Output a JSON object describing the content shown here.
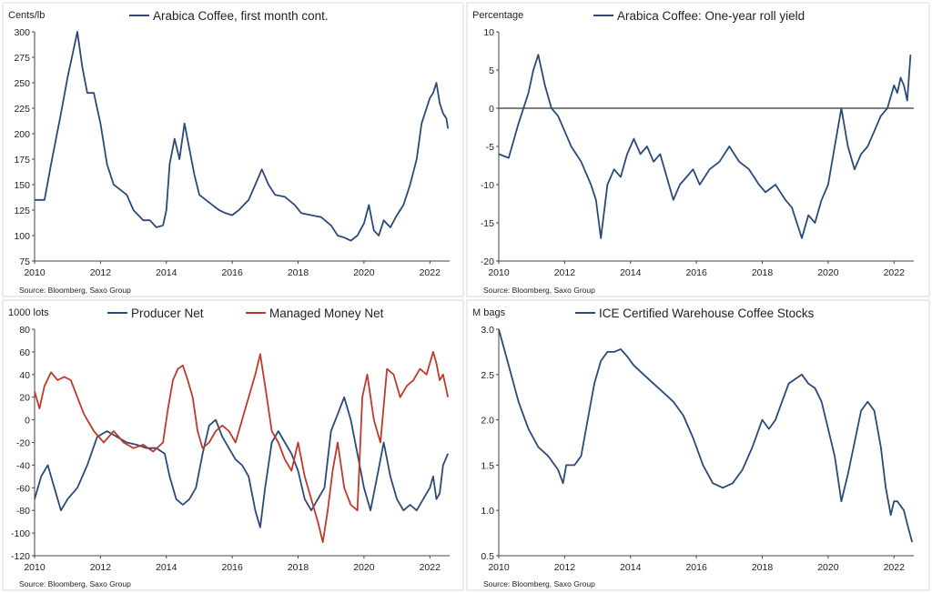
{
  "colors": {
    "navy": "#2b4a78",
    "red": "#c0392b",
    "axis": "#444444",
    "zero_line": "#555555",
    "frame": "#d9d9d9",
    "text": "#222222"
  },
  "source_note": "Source: Bloomberg, Saxo Group",
  "chart_data": [
    {
      "type": "line",
      "title": "",
      "ylabel": "Cents/lb",
      "ylim": [
        75,
        300
      ],
      "yticks": [
        "75",
        "100",
        "125",
        "150",
        "175",
        "200",
        "225",
        "250",
        "275",
        "300"
      ],
      "xlim": [
        2010,
        2022.6
      ],
      "xticks": [
        "2010",
        "2012",
        "2014",
        "2016",
        "2018",
        "2020",
        "2022"
      ],
      "grid": false,
      "legend": "top",
      "series": [
        {
          "name": "Arabica Coffee, first month cont.",
          "x": [
            2010.0,
            2010.3,
            2010.5,
            2010.8,
            2011.0,
            2011.2,
            2011.3,
            2011.45,
            2011.6,
            2011.8,
            2012.0,
            2012.2,
            2012.4,
            2012.6,
            2012.8,
            2013.0,
            2013.3,
            2013.5,
            2013.7,
            2013.9,
            2014.0,
            2014.1,
            2014.25,
            2014.4,
            2014.55,
            2014.7,
            2014.85,
            2015.0,
            2015.2,
            2015.4,
            2015.6,
            2015.8,
            2016.0,
            2016.2,
            2016.5,
            2016.7,
            2016.9,
            2017.1,
            2017.3,
            2017.6,
            2017.9,
            2018.1,
            2018.4,
            2018.7,
            2019.0,
            2019.2,
            2019.4,
            2019.6,
            2019.8,
            2020.0,
            2020.15,
            2020.3,
            2020.45,
            2020.6,
            2020.8,
            2021.0,
            2021.2,
            2021.4,
            2021.6,
            2021.75,
            2021.9,
            2022.0,
            2022.1,
            2022.2,
            2022.3,
            2022.4,
            2022.5,
            2022.55
          ],
          "values": [
            135,
            135,
            170,
            220,
            255,
            285,
            300,
            265,
            240,
            240,
            210,
            170,
            150,
            145,
            140,
            125,
            115,
            115,
            108,
            110,
            125,
            170,
            195,
            175,
            210,
            185,
            160,
            140,
            135,
            130,
            125,
            122,
            120,
            125,
            135,
            150,
            165,
            150,
            140,
            138,
            130,
            122,
            120,
            118,
            110,
            100,
            98,
            95,
            100,
            112,
            130,
            105,
            100,
            115,
            108,
            120,
            130,
            150,
            175,
            210,
            225,
            235,
            240,
            250,
            230,
            220,
            215,
            205
          ]
        }
      ]
    },
    {
      "type": "line",
      "title": "",
      "ylabel": "Percentage",
      "ylim": [
        -20,
        10
      ],
      "yticks": [
        "-20",
        "-15",
        "-10",
        "-5",
        "0",
        "5",
        "10"
      ],
      "xlim": [
        2010,
        2022.6
      ],
      "xticks": [
        "2010",
        "2012",
        "2014",
        "2016",
        "2018",
        "2020",
        "2022"
      ],
      "grid": false,
      "legend": "top",
      "reference_line": 0,
      "series": [
        {
          "name": "Arabica Coffee: One-year roll yield",
          "x": [
            2010.0,
            2010.3,
            2010.6,
            2010.9,
            2011.05,
            2011.2,
            2011.4,
            2011.6,
            2011.8,
            2012.0,
            2012.2,
            2012.5,
            2012.8,
            2012.95,
            2013.1,
            2013.3,
            2013.5,
            2013.7,
            2013.9,
            2014.1,
            2014.3,
            2014.5,
            2014.7,
            2014.9,
            2015.1,
            2015.3,
            2015.5,
            2015.7,
            2015.9,
            2016.1,
            2016.4,
            2016.7,
            2017.0,
            2017.3,
            2017.6,
            2017.9,
            2018.1,
            2018.4,
            2018.7,
            2018.9,
            2019.05,
            2019.2,
            2019.4,
            2019.6,
            2019.8,
            2020.0,
            2020.2,
            2020.4,
            2020.6,
            2020.8,
            2021.0,
            2021.2,
            2021.4,
            2021.6,
            2021.8,
            2022.0,
            2022.1,
            2022.2,
            2022.3,
            2022.4,
            2022.5
          ],
          "values": [
            -6,
            -6.5,
            -2,
            2,
            5,
            7,
            3,
            0,
            -1,
            -3,
            -5,
            -7,
            -10,
            -12,
            -17,
            -10,
            -8,
            -9,
            -6,
            -4,
            -6,
            -5,
            -7,
            -6,
            -9,
            -12,
            -10,
            -9,
            -8,
            -10,
            -8,
            -7,
            -5,
            -7,
            -8,
            -10,
            -11,
            -10,
            -12,
            -13,
            -15,
            -17,
            -14,
            -15,
            -12,
            -10,
            -5,
            0,
            -5,
            -8,
            -6,
            -5,
            -3,
            -1,
            0,
            3,
            2,
            4,
            3,
            1,
            7
          ]
        }
      ]
    },
    {
      "type": "line",
      "title": "",
      "ylabel": "1000 lots",
      "ylim": [
        -120,
        80
      ],
      "yticks": [
        "-120",
        "-100",
        "-80",
        "-60",
        "-40",
        "-20",
        "0",
        "20",
        "40",
        "60",
        "80"
      ],
      "xlim": [
        2010,
        2022.6
      ],
      "xticks": [
        "2010",
        "2012",
        "2014",
        "2016",
        "2018",
        "2020",
        "2022"
      ],
      "grid": false,
      "legend": "top",
      "series": [
        {
          "name": "Producer Net",
          "x": [
            2010.0,
            2010.2,
            2010.4,
            2010.6,
            2010.8,
            2011.0,
            2011.3,
            2011.6,
            2011.9,
            2012.2,
            2012.5,
            2012.8,
            2013.1,
            2013.4,
            2013.7,
            2013.95,
            2014.1,
            2014.3,
            2014.5,
            2014.7,
            2014.9,
            2015.1,
            2015.3,
            2015.5,
            2015.7,
            2015.9,
            2016.1,
            2016.3,
            2016.5,
            2016.7,
            2016.85,
            2017.0,
            2017.2,
            2017.4,
            2017.6,
            2017.8,
            2018.0,
            2018.2,
            2018.4,
            2018.6,
            2018.8,
            2019.0,
            2019.2,
            2019.4,
            2019.6,
            2019.8,
            2020.0,
            2020.2,
            2020.4,
            2020.6,
            2020.8,
            2021.0,
            2021.2,
            2021.4,
            2021.6,
            2021.8,
            2022.0,
            2022.1,
            2022.2,
            2022.3,
            2022.4,
            2022.55
          ],
          "values": [
            -70,
            -50,
            -40,
            -60,
            -80,
            -70,
            -60,
            -40,
            -15,
            -10,
            -15,
            -20,
            -22,
            -25,
            -25,
            -30,
            -50,
            -70,
            -75,
            -70,
            -60,
            -30,
            -5,
            0,
            -15,
            -25,
            -35,
            -40,
            -50,
            -80,
            -95,
            -60,
            -20,
            -10,
            -20,
            -30,
            -45,
            -70,
            -80,
            -70,
            -60,
            -10,
            5,
            20,
            0,
            -30,
            -60,
            -80,
            -50,
            -20,
            -50,
            -70,
            -80,
            -75,
            -80,
            -70,
            -60,
            -50,
            -70,
            -65,
            -40,
            -30
          ]
        },
        {
          "name": "Managed Money Net",
          "x": [
            2010.0,
            2010.15,
            2010.3,
            2010.5,
            2010.7,
            2010.9,
            2011.1,
            2011.3,
            2011.5,
            2011.8,
            2012.1,
            2012.4,
            2012.7,
            2013.0,
            2013.3,
            2013.6,
            2013.9,
            2014.05,
            2014.2,
            2014.35,
            2014.5,
            2014.65,
            2014.8,
            2014.95,
            2015.1,
            2015.3,
            2015.5,
            2015.7,
            2015.9,
            2016.1,
            2016.3,
            2016.5,
            2016.7,
            2016.85,
            2017.0,
            2017.2,
            2017.4,
            2017.6,
            2017.8,
            2018.0,
            2018.2,
            2018.4,
            2018.6,
            2018.75,
            2018.9,
            2019.05,
            2019.2,
            2019.4,
            2019.6,
            2019.8,
            2019.95,
            2020.1,
            2020.3,
            2020.5,
            2020.7,
            2020.9,
            2021.1,
            2021.3,
            2021.5,
            2021.7,
            2021.9,
            2022.1,
            2022.2,
            2022.3,
            2022.4,
            2022.55
          ],
          "values": [
            25,
            10,
            30,
            42,
            35,
            38,
            35,
            20,
            5,
            -10,
            -20,
            -10,
            -20,
            -25,
            -22,
            -28,
            -20,
            10,
            35,
            45,
            48,
            35,
            20,
            -10,
            -25,
            -20,
            -10,
            -5,
            -10,
            -20,
            0,
            20,
            40,
            58,
            30,
            -10,
            -20,
            -35,
            -45,
            -20,
            -50,
            -70,
            -90,
            -108,
            -80,
            -45,
            -20,
            -60,
            -75,
            -80,
            20,
            40,
            0,
            -20,
            45,
            40,
            20,
            30,
            35,
            45,
            40,
            60,
            50,
            35,
            40,
            20
          ]
        }
      ]
    },
    {
      "type": "line",
      "title": "",
      "ylabel": "M bags",
      "ylim": [
        0.5,
        3.0
      ],
      "yticks": [
        "0.5",
        "1.0",
        "1.5",
        "2.0",
        "2.5",
        "3.0"
      ],
      "xlim": [
        2010,
        2022.6
      ],
      "xticks": [
        "2010",
        "2012",
        "2014",
        "2016",
        "2018",
        "2020",
        "2022"
      ],
      "grid": false,
      "legend": "top",
      "series": [
        {
          "name": "ICE Certified Warehouse Coffee Stocks",
          "x": [
            2010.0,
            2010.3,
            2010.6,
            2010.9,
            2011.2,
            2011.5,
            2011.8,
            2011.95,
            2012.05,
            2012.3,
            2012.5,
            2012.7,
            2012.9,
            2013.1,
            2013.3,
            2013.5,
            2013.7,
            2013.9,
            2014.1,
            2014.4,
            2014.7,
            2015.0,
            2015.3,
            2015.6,
            2015.9,
            2016.2,
            2016.5,
            2016.8,
            2017.1,
            2017.4,
            2017.7,
            2018.0,
            2018.2,
            2018.4,
            2018.6,
            2018.8,
            2019.0,
            2019.2,
            2019.4,
            2019.6,
            2019.8,
            2020.0,
            2020.2,
            2020.4,
            2020.6,
            2020.8,
            2021.0,
            2021.2,
            2021.4,
            2021.6,
            2021.75,
            2021.9,
            2022.0,
            2022.1,
            2022.2,
            2022.3,
            2022.4,
            2022.55
          ],
          "values": [
            3.0,
            2.6,
            2.2,
            1.9,
            1.7,
            1.6,
            1.45,
            1.3,
            1.5,
            1.5,
            1.6,
            2.0,
            2.4,
            2.65,
            2.75,
            2.75,
            2.78,
            2.7,
            2.6,
            2.5,
            2.4,
            2.3,
            2.2,
            2.05,
            1.8,
            1.5,
            1.3,
            1.25,
            1.3,
            1.45,
            1.7,
            2.0,
            1.9,
            2.0,
            2.2,
            2.4,
            2.45,
            2.5,
            2.4,
            2.35,
            2.2,
            1.9,
            1.6,
            1.1,
            1.4,
            1.75,
            2.1,
            2.2,
            2.1,
            1.7,
            1.25,
            0.95,
            1.1,
            1.1,
            1.05,
            1.0,
            0.85,
            0.65
          ]
        }
      ]
    }
  ]
}
